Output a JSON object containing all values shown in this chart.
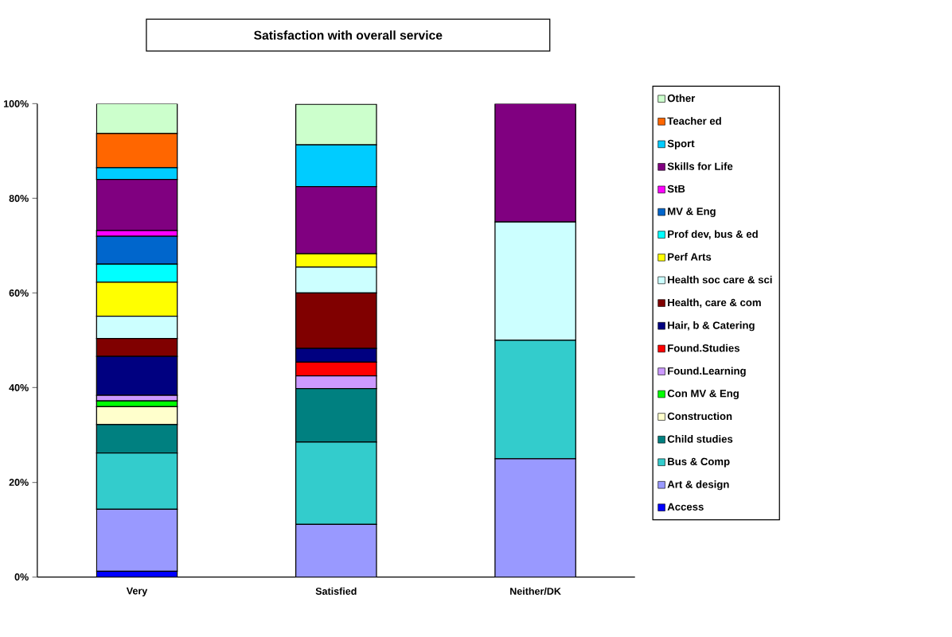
{
  "chart_data": {
    "type": "bar",
    "stacked": true,
    "title": "Satisfaction with overall service",
    "categories": [
      "Very",
      "Satisfied",
      "Neither/DK"
    ],
    "ylim": [
      0,
      100
    ],
    "yticks": [
      {
        "value": 0,
        "label": "0%"
      },
      {
        "value": 20,
        "label": "20%"
      },
      {
        "value": 40,
        "label": "40%"
      },
      {
        "value": 60,
        "label": "60%"
      },
      {
        "value": 80,
        "label": "80%"
      },
      {
        "value": 100,
        "label": "100%"
      }
    ],
    "grid": false,
    "legend": "right",
    "series": [
      {
        "name": "Access",
        "color": "#0000ff",
        "values": [
          1.2,
          null,
          null
        ]
      },
      {
        "name": "Art & design",
        "color": "#9999ff",
        "values": [
          13.1,
          11.1,
          25
        ]
      },
      {
        "name": "Bus & Comp",
        "color": "#33cccc",
        "values": [
          11.9,
          17.4,
          25
        ]
      },
      {
        "name": "Child studies",
        "color": "#008080",
        "values": [
          6.0,
          11.3,
          null
        ]
      },
      {
        "name": "Construction",
        "color": "#ffffcc",
        "values": [
          3.8,
          null,
          null
        ]
      },
      {
        "name": "Con MV & Eng",
        "color": "#00ff00",
        "values": [
          1.2,
          null,
          null
        ]
      },
      {
        "name": "Found.Learning",
        "color": "#cc99ff",
        "values": [
          1.2,
          2.7,
          null
        ]
      },
      {
        "name": "Found.Studies",
        "color": "#ff0000",
        "values": [
          null,
          2.9,
          null
        ]
      },
      {
        "name": "Hair, b & Catering",
        "color": "#000080",
        "values": [
          8.2,
          2.9,
          null
        ]
      },
      {
        "name": "Health, care & com",
        "color": "#800000",
        "values": [
          3.8,
          11.7,
          null
        ]
      },
      {
        "name": "Health soc care & sci",
        "color": "#ccffff",
        "values": [
          4.7,
          5.5,
          25
        ]
      },
      {
        "name": "Perf Arts",
        "color": "#ffff00",
        "values": [
          7.2,
          2.8,
          null
        ]
      },
      {
        "name": "Prof dev, bus & ed",
        "color": "#00ffff",
        "values": [
          3.8,
          null,
          null
        ]
      },
      {
        "name": "MV & Eng",
        "color": "#0066cc",
        "values": [
          5.9,
          null,
          null
        ]
      },
      {
        "name": "StB",
        "color": "#ff00ff",
        "values": [
          1.2,
          null,
          null
        ]
      },
      {
        "name": "Skills for Life",
        "color": "#800080",
        "values": [
          10.8,
          14.2,
          25
        ]
      },
      {
        "name": "Sport",
        "color": "#00ccff",
        "values": [
          2.5,
          8.8,
          null
        ]
      },
      {
        "name": "Teacher ed",
        "color": "#ff6600",
        "values": [
          7.2,
          null,
          null
        ]
      },
      {
        "name": "Other",
        "color": "#ccffcc",
        "values": [
          6.3,
          8.6,
          null
        ]
      }
    ]
  }
}
